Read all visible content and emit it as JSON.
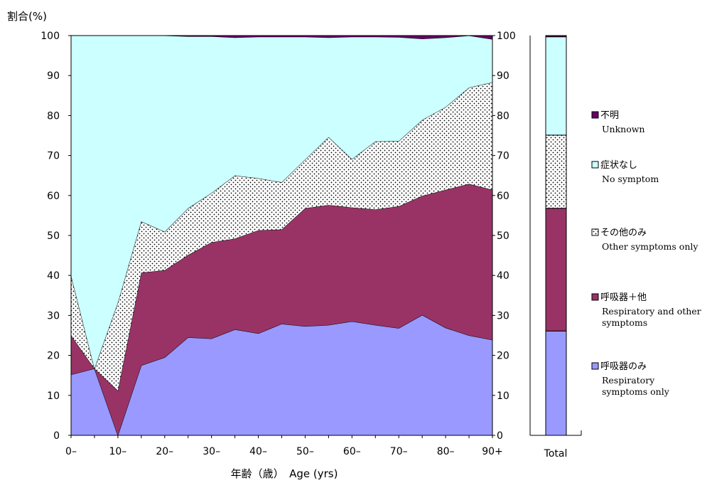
{
  "chart_data": [
    {
      "type": "area",
      "stacked": true,
      "percent": true,
      "ylabel": "割合(%)",
      "xlabel": "年齢（歳）　Age (yrs)",
      "ylim": [
        0,
        100
      ],
      "y_ticks": [
        "0",
        "10",
        "20",
        "30",
        "40",
        "50",
        "60",
        "70",
        "80",
        "90",
        "100"
      ],
      "x": [
        "0–",
        "5–",
        "10–",
        "15–",
        "20–",
        "25–",
        "30–",
        "35–",
        "40–",
        "45–",
        "50–",
        "55–",
        "60–",
        "65–",
        "70–",
        "75–",
        "80–",
        "85–",
        "90+"
      ],
      "x_tick_labels": [
        "0–",
        "10–",
        "20–",
        "30–",
        "40–",
        "50–",
        "60–",
        "70–",
        "80–",
        "90+"
      ],
      "series": [
        {
          "name": "呼吸器のみ",
          "name_en": "Respiratory symptoms only",
          "color": "#9999ff",
          "values": [
            15.2,
            16.7,
            0,
            17.5,
            19.5,
            24.5,
            24.2,
            26.5,
            25.5,
            27.9,
            27.3,
            27.6,
            28.5,
            27.6,
            26.8,
            30.1,
            26.9,
            25.0,
            23.9
          ]
        },
        {
          "name": "呼吸器＋他",
          "name_en": "Respiratory and other symptoms",
          "color": "#993366",
          "values": [
            9.8,
            0,
            11.2,
            23.2,
            21.8,
            20.6,
            24.1,
            22.7,
            25.8,
            23.6,
            29.5,
            30.0,
            28.5,
            28.9,
            30.5,
            29.8,
            34.5,
            37.9,
            37.5
          ]
        },
        {
          "name": "その他のみ",
          "name_en": "Other symptoms only",
          "color": "#ffffff",
          "pattern": "dots",
          "values": [
            15.0,
            0,
            22.0,
            12.8,
            9.6,
            11.7,
            12.3,
            15.8,
            13.0,
            11.8,
            12.2,
            17.0,
            12.1,
            17.0,
            16.3,
            19.0,
            20.7,
            24.1,
            26.9
          ]
        },
        {
          "name": "症状なし",
          "name_en": "No symptom",
          "color": "#ccffff",
          "values": [
            60.0,
            83.3,
            66.8,
            46.5,
            49.1,
            43.0,
            39.2,
            34.5,
            35.4,
            36.4,
            30.7,
            24.9,
            30.6,
            26.2,
            26.0,
            20.3,
            17.4,
            13.0,
            10.8
          ]
        },
        {
          "name": "不明",
          "name_en": "Unknown",
          "color": "#660066",
          "values": [
            0,
            0,
            0,
            0,
            0,
            0.2,
            0.2,
            0.5,
            0.3,
            0.3,
            0.3,
            0.5,
            0.3,
            0.3,
            0.4,
            0.8,
            0.5,
            0,
            0.9
          ]
        }
      ]
    },
    {
      "type": "bar",
      "stacked": true,
      "categories": [
        "Total"
      ],
      "ylim": [
        0,
        100
      ],
      "series": [
        {
          "name": "呼吸器のみ",
          "values": [
            26.1
          ]
        },
        {
          "name": "呼吸器＋他",
          "values": [
            30.7
          ]
        },
        {
          "name": "その他のみ",
          "values": [
            18.3
          ]
        },
        {
          "name": "症状なし",
          "values": [
            24.6
          ]
        },
        {
          "name": "不明",
          "values": [
            0.3
          ]
        }
      ]
    }
  ],
  "legend": [
    {
      "ja": "不明",
      "en": [
        "Unknown"
      ],
      "color": "#660066"
    },
    {
      "ja": "症状なし",
      "en": [
        "No symptom"
      ],
      "color": "#ccffff"
    },
    {
      "ja": "その他のみ",
      "en": [
        "Other symptoms only"
      ],
      "color": "#ffffff",
      "pattern": "dots"
    },
    {
      "ja": "呼吸器＋他",
      "en": [
        "Respiratory and other",
        "symptoms"
      ],
      "color": "#993366"
    },
    {
      "ja": "呼吸器のみ",
      "en": [
        "Respiratory",
        "symptoms only"
      ],
      "color": "#9999ff"
    }
  ]
}
